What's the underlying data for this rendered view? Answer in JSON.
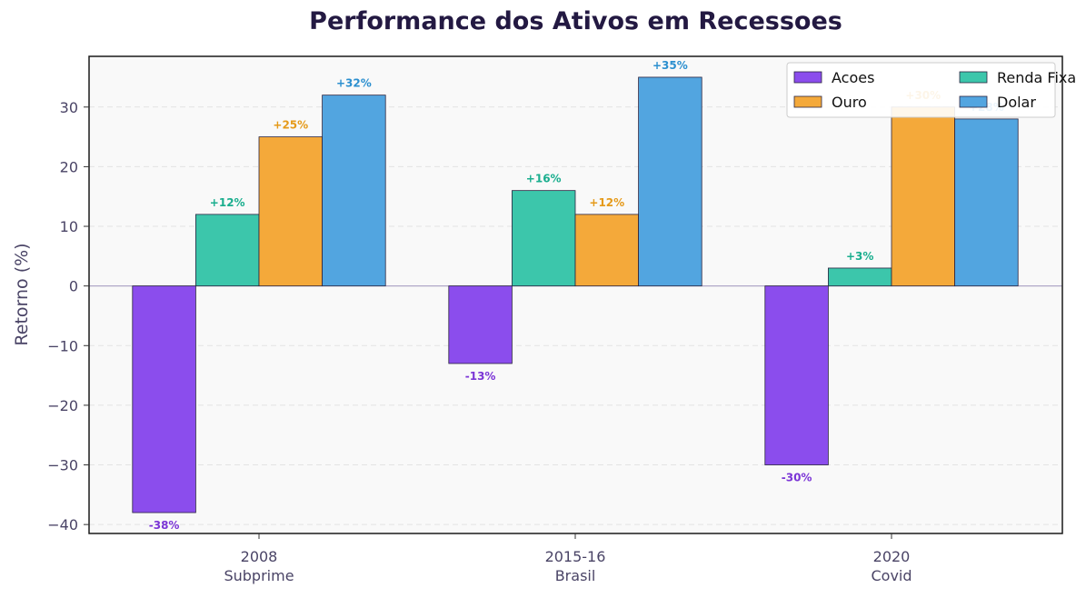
{
  "chart_data": {
    "type": "bar",
    "title": "Performance dos Ativos em Recessoes",
    "ylabel": "Retorno (%)",
    "xlabel": "",
    "ylim": [
      -41.5,
      38.5
    ],
    "yticks": [
      -40,
      -30,
      -20,
      -10,
      0,
      10,
      20,
      30
    ],
    "ytick_labels": [
      "−40",
      "−30",
      "−20",
      "−10",
      "0",
      "10",
      "20",
      "30"
    ],
    "categories": [
      {
        "line1": "2008",
        "line2": "Subprime"
      },
      {
        "line1": "2015-16",
        "line2": "Brasil"
      },
      {
        "line1": "2020",
        "line2": "Covid"
      }
    ],
    "series": [
      {
        "name": "Acoes",
        "color": "#8b4ded",
        "label_color": "#7b35d6",
        "values": [
          -38,
          -13,
          -30
        ],
        "labels": [
          "-38%",
          "-13%",
          "-30%"
        ]
      },
      {
        "name": "Renda Fixa",
        "color": "#3cc6ab",
        "label_color": "#1aae8e",
        "values": [
          12,
          16,
          3
        ],
        "labels": [
          "+12%",
          "+16%",
          "+3%"
        ]
      },
      {
        "name": "Ouro",
        "color": "#f4a93a",
        "label_color": "#e59a1a",
        "values": [
          25,
          12,
          30
        ],
        "labels": [
          "+25%",
          "+12%",
          "+30%"
        ]
      },
      {
        "name": "Dolar",
        "color": "#52a5e0",
        "label_color": "#2b8fcf",
        "values": [
          32,
          35,
          28
        ],
        "labels": [
          "+32%",
          "+35%",
          "+28%"
        ]
      }
    ],
    "grid": true,
    "legend": "top-right, 2 columns"
  }
}
